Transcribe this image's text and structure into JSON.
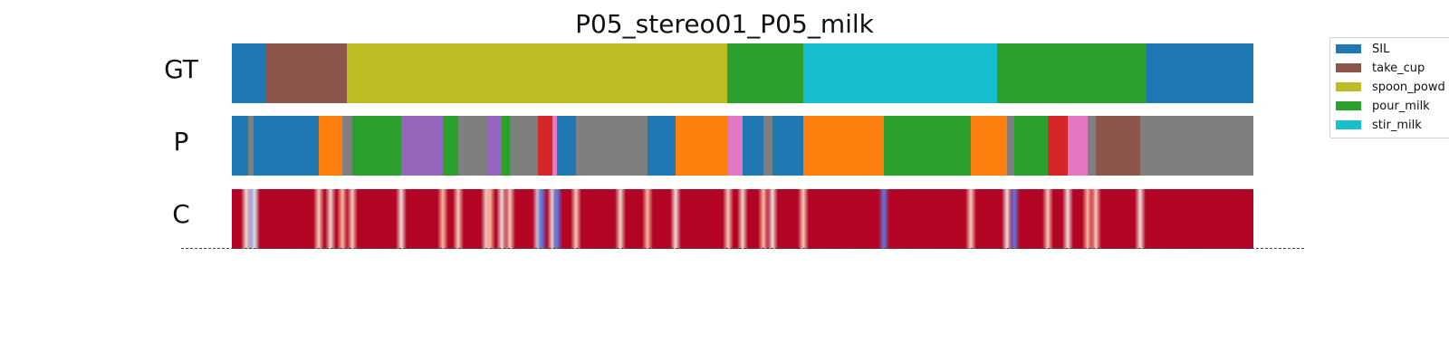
{
  "chart_data": {
    "type": "segmentation",
    "title": "P05_stereo01_P05_milk",
    "x_range": [
      0,
      1
    ],
    "rows": [
      {
        "label": "GT",
        "segments": [
          {
            "start": 0.0,
            "end": 0.033,
            "class": "SIL"
          },
          {
            "start": 0.033,
            "end": 0.113,
            "class": "take_cup"
          },
          {
            "start": 0.113,
            "end": 0.485,
            "class": "spoon_powd"
          },
          {
            "start": 0.485,
            "end": 0.559,
            "class": "pour_milk"
          },
          {
            "start": 0.559,
            "end": 0.749,
            "class": "stir_milk"
          },
          {
            "start": 0.749,
            "end": 0.895,
            "class": "pour_milk"
          },
          {
            "start": 0.895,
            "end": 1.0,
            "class": "SIL"
          }
        ]
      },
      {
        "label": "P",
        "segments": [
          {
            "start": 0.0,
            "end": 0.016,
            "class": "SIL"
          },
          {
            "start": 0.016,
            "end": 0.021,
            "class": "other_gray"
          },
          {
            "start": 0.021,
            "end": 0.085,
            "class": "SIL"
          },
          {
            "start": 0.085,
            "end": 0.108,
            "class": "other_orange"
          },
          {
            "start": 0.108,
            "end": 0.118,
            "class": "other_gray"
          },
          {
            "start": 0.118,
            "end": 0.166,
            "class": "pour_milk"
          },
          {
            "start": 0.166,
            "end": 0.207,
            "class": "other_purple"
          },
          {
            "start": 0.207,
            "end": 0.222,
            "class": "pour_milk"
          },
          {
            "start": 0.222,
            "end": 0.249,
            "class": "other_gray"
          },
          {
            "start": 0.249,
            "end": 0.264,
            "class": "other_purple"
          },
          {
            "start": 0.264,
            "end": 0.272,
            "class": "pour_milk"
          },
          {
            "start": 0.272,
            "end": 0.3,
            "class": "other_gray"
          },
          {
            "start": 0.3,
            "end": 0.314,
            "class": "other_red"
          },
          {
            "start": 0.314,
            "end": 0.318,
            "class": "other_pink"
          },
          {
            "start": 0.318,
            "end": 0.337,
            "class": "SIL"
          },
          {
            "start": 0.337,
            "end": 0.407,
            "class": "other_gray"
          },
          {
            "start": 0.407,
            "end": 0.434,
            "class": "SIL"
          },
          {
            "start": 0.434,
            "end": 0.486,
            "class": "other_orange"
          },
          {
            "start": 0.486,
            "end": 0.5,
            "class": "other_pink"
          },
          {
            "start": 0.5,
            "end": 0.52,
            "class": "SIL"
          },
          {
            "start": 0.52,
            "end": 0.529,
            "class": "other_gray"
          },
          {
            "start": 0.529,
            "end": 0.559,
            "class": "SIL"
          },
          {
            "start": 0.559,
            "end": 0.638,
            "class": "other_orange"
          },
          {
            "start": 0.638,
            "end": 0.723,
            "class": "pour_milk"
          },
          {
            "start": 0.723,
            "end": 0.759,
            "class": "other_orange"
          },
          {
            "start": 0.759,
            "end": 0.766,
            "class": "other_gray"
          },
          {
            "start": 0.766,
            "end": 0.799,
            "class": "pour_milk"
          },
          {
            "start": 0.799,
            "end": 0.818,
            "class": "other_red"
          },
          {
            "start": 0.818,
            "end": 0.838,
            "class": "other_pink"
          },
          {
            "start": 0.838,
            "end": 0.846,
            "class": "other_gray"
          },
          {
            "start": 0.846,
            "end": 0.889,
            "class": "take_cup"
          },
          {
            "start": 0.889,
            "end": 1.0,
            "class": "other_gray"
          }
        ]
      },
      {
        "label": "C",
        "base_color": "#b40426",
        "stripes": [
          {
            "x": 0.014,
            "color": "#eadfd9"
          },
          {
            "x": 0.018,
            "color": "#f2cbb7"
          },
          {
            "x": 0.02,
            "color": "#5b7ae5"
          },
          {
            "x": 0.022,
            "color": "#dddcdc"
          },
          {
            "x": 0.085,
            "color": "#f2cbb7"
          },
          {
            "x": 0.097,
            "color": "#ead5c9"
          },
          {
            "x": 0.108,
            "color": "#f7b89c"
          },
          {
            "x": 0.118,
            "color": "#f2cbb7"
          },
          {
            "x": 0.166,
            "color": "#eadfd9"
          },
          {
            "x": 0.207,
            "color": "#f7b89c"
          },
          {
            "x": 0.222,
            "color": "#f2cbb7"
          },
          {
            "x": 0.249,
            "color": "#ead5c9"
          },
          {
            "x": 0.253,
            "color": "#f7b89c"
          },
          {
            "x": 0.264,
            "color": "#eadfd9"
          },
          {
            "x": 0.272,
            "color": "#f2cbb7"
          },
          {
            "x": 0.3,
            "color": "#dddcdc"
          },
          {
            "x": 0.303,
            "color": "#5b7ae5"
          },
          {
            "x": 0.314,
            "color": "#eadfd9"
          },
          {
            "x": 0.318,
            "color": "#5b7ae5"
          },
          {
            "x": 0.337,
            "color": "#f2cbb7"
          },
          {
            "x": 0.38,
            "color": "#ead5c9"
          },
          {
            "x": 0.407,
            "color": "#f7b89c"
          },
          {
            "x": 0.434,
            "color": "#eadfd9"
          },
          {
            "x": 0.486,
            "color": "#f2cbb7"
          },
          {
            "x": 0.5,
            "color": "#ead5c9"
          },
          {
            "x": 0.52,
            "color": "#f7b89c"
          },
          {
            "x": 0.529,
            "color": "#eadfd9"
          },
          {
            "x": 0.559,
            "color": "#f2cbb7"
          },
          {
            "x": 0.638,
            "color": "#5b7ae5"
          },
          {
            "x": 0.723,
            "color": "#f2cbb7"
          },
          {
            "x": 0.759,
            "color": "#eadfd9"
          },
          {
            "x": 0.766,
            "color": "#5b7ae5"
          },
          {
            "x": 0.799,
            "color": "#f2cbb7"
          },
          {
            "x": 0.818,
            "color": "#eadfd9"
          },
          {
            "x": 0.838,
            "color": "#f7b89c"
          },
          {
            "x": 0.846,
            "color": "#f2cbb7"
          },
          {
            "x": 0.889,
            "color": "#eadfd9"
          }
        ]
      }
    ],
    "legend": [
      {
        "label": "SIL",
        "color": "#1f77b4"
      },
      {
        "label": "take_cup",
        "color": "#8c564b"
      },
      {
        "label": "spoon_powd",
        "color": "#bcbd22"
      },
      {
        "label": "pour_milk",
        "color": "#2ca02c"
      },
      {
        "label": "stir_milk",
        "color": "#17becf"
      }
    ],
    "class_colors": {
      "SIL": "#1f77b4",
      "take_cup": "#8c564b",
      "spoon_powd": "#bcbd22",
      "pour_milk": "#2ca02c",
      "stir_milk": "#17becf",
      "other_gray": "#7f7f7f",
      "other_orange": "#ff7f0e",
      "other_purple": "#9467bd",
      "other_red": "#d62728",
      "other_pink": "#e377c2"
    },
    "legend_placement": "top-right",
    "grid": false
  }
}
